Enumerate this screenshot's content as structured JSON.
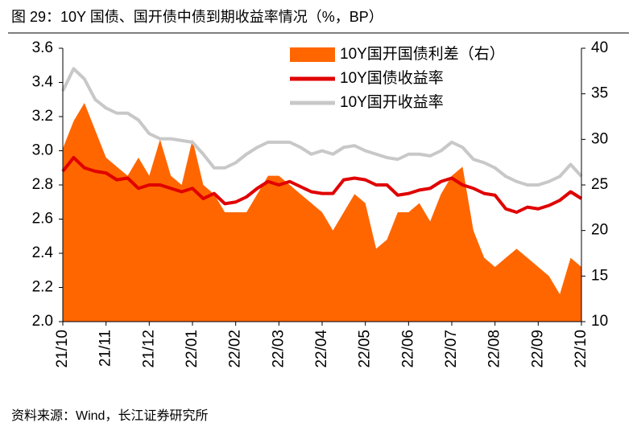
{
  "chart_data": {
    "type": "line",
    "title": "图 29：10Y 国债、国开债中债到期收益率情况（%，BP）",
    "source": "资料来源：Wind，长江证券研究所",
    "categories": [
      "21/10",
      null,
      null,
      null,
      "21/11",
      null,
      null,
      null,
      "21/12",
      null,
      null,
      null,
      "22/01",
      null,
      null,
      null,
      "22/02",
      null,
      null,
      null,
      "22/03",
      null,
      null,
      null,
      "22/04",
      null,
      null,
      null,
      "22/05",
      null,
      null,
      null,
      "22/06",
      null,
      null,
      null,
      "22/07",
      null,
      null,
      null,
      "22/08",
      null,
      null,
      null,
      "22/09",
      null,
      null,
      null,
      "22/10"
    ],
    "series": [
      {
        "name": "10Y国开国债利差（右）",
        "type": "area",
        "axis": "y2",
        "color": "#ff6600",
        "values": [
          29,
          32,
          34,
          31,
          28,
          27,
          26,
          28,
          26,
          30,
          26,
          25,
          30,
          25,
          24,
          22,
          22,
          22,
          24,
          26,
          26,
          25,
          24,
          23,
          22,
          20,
          22,
          24,
          23,
          18,
          19,
          22,
          22,
          23,
          21,
          24,
          26,
          27,
          20,
          17,
          16,
          17,
          18,
          17,
          16,
          15,
          13,
          17,
          16
        ]
      },
      {
        "name": "10Y国债收益率",
        "type": "line",
        "color": "#e00000",
        "values": [
          2.88,
          2.96,
          2.9,
          2.88,
          2.87,
          2.83,
          2.84,
          2.78,
          2.8,
          2.8,
          2.78,
          2.76,
          2.78,
          2.72,
          2.75,
          2.69,
          2.7,
          2.73,
          2.78,
          2.82,
          2.8,
          2.82,
          2.79,
          2.76,
          2.75,
          2.75,
          2.83,
          2.84,
          2.83,
          2.8,
          2.8,
          2.74,
          2.75,
          2.77,
          2.78,
          2.82,
          2.84,
          2.8,
          2.78,
          2.75,
          2.74,
          2.66,
          2.64,
          2.67,
          2.66,
          2.68,
          2.71,
          2.76,
          2.72
        ]
      },
      {
        "name": "10Y国开收益率",
        "type": "line",
        "color": "#c8c8c8",
        "values": [
          3.35,
          3.48,
          3.42,
          3.3,
          3.25,
          3.22,
          3.22,
          3.18,
          3.1,
          3.07,
          3.07,
          3.06,
          3.05,
          2.98,
          2.9,
          2.9,
          2.93,
          2.98,
          3.02,
          3.05,
          3.05,
          3.05,
          3.02,
          2.98,
          3.0,
          2.98,
          3.02,
          3.03,
          3.0,
          2.98,
          2.96,
          2.95,
          2.98,
          2.98,
          2.97,
          3.0,
          3.05,
          3.02,
          2.95,
          2.93,
          2.9,
          2.85,
          2.82,
          2.8,
          2.8,
          2.82,
          2.85,
          2.92,
          2.85
        ]
      }
    ],
    "ylim": [
      2.0,
      3.6
    ],
    "yticks": [
      {
        "value": 2.0,
        "label": "2.0"
      },
      2.2,
      2.4,
      2.6,
      2.8,
      {
        "value": 3.0,
        "label": "3.0"
      },
      3.2,
      3.4,
      3.6
    ],
    "y2lim": [
      10,
      40
    ],
    "y2ticks": [
      10,
      15,
      20,
      25,
      30,
      35,
      40
    ],
    "legend": "upper right",
    "grid": false
  }
}
